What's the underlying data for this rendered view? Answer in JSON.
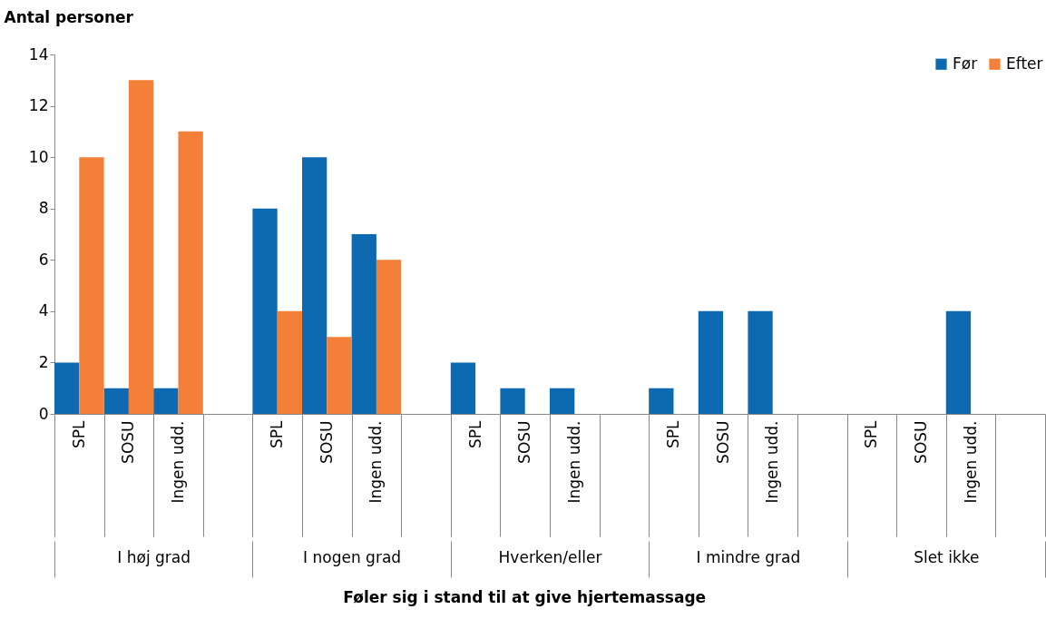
{
  "chart_data": {
    "type": "bar",
    "ylabel": "Antal personer",
    "categories": [
      "SPL",
      "SOSU",
      "Ingen udd.",
      null,
      "SPL",
      "SOSU",
      "Ingen udd.",
      null,
      "SPL",
      "SOSU",
      "Ingen udd.",
      null,
      "SPL",
      "SOSU",
      "Ingen udd.",
      null,
      "SPL",
      "SOSU",
      "Ingen udd.",
      null
    ],
    "annotations": [
      "I høj grad",
      "I nogen grad",
      "Hverken/eller",
      "I mindre grad",
      "Slet ikke",
      "Føler sig i stand til at give hjertemassage"
    ],
    "series": [
      {
        "name": "Før",
        "color": "#0e6ab0",
        "values": [
          2,
          1,
          1,
          null,
          8,
          10,
          7,
          null,
          2,
          1,
          1,
          null,
          1,
          4,
          4,
          null,
          0,
          0,
          4,
          null
        ]
      },
      {
        "name": "Efter",
        "color": "#f47f39",
        "values": [
          10,
          13,
          11,
          null,
          4,
          3,
          6,
          null,
          0,
          0,
          0,
          null,
          0,
          0,
          0,
          null,
          0,
          0,
          0,
          null
        ]
      }
    ],
    "ylim": [
      0,
      14
    ],
    "yticks": [
      0,
      2,
      4,
      6,
      8,
      10,
      12,
      14
    ],
    "legend": "top right"
  }
}
